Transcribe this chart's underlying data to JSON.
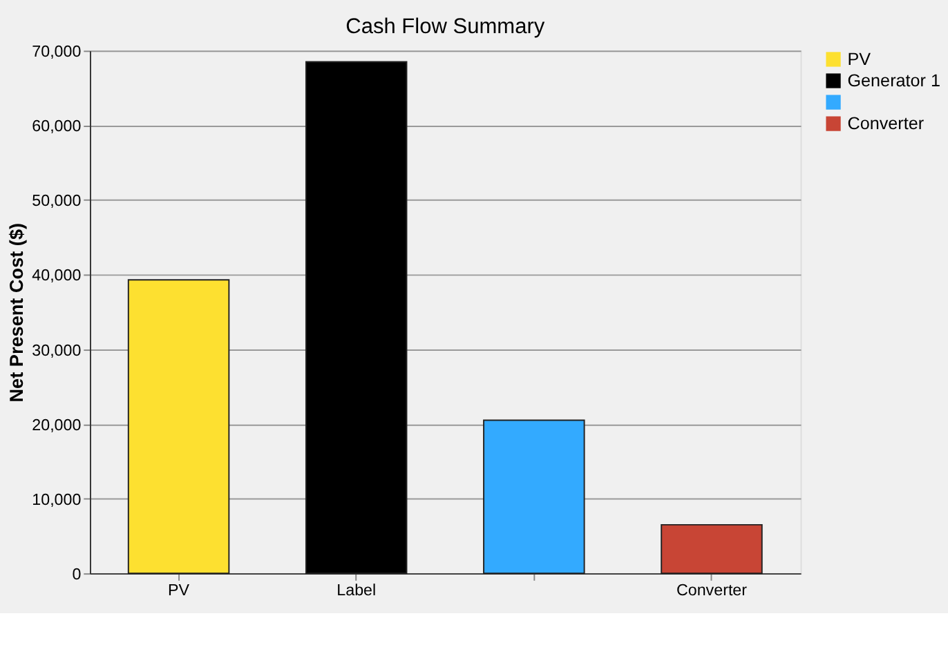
{
  "chart_data": {
    "type": "bar",
    "title": "Cash Flow Summary",
    "ylabel": "Net Present Cost ($)",
    "categories": [
      "PV",
      "Label",
      null,
      "Converter"
    ],
    "series": [
      {
        "name": "PV",
        "color": "#fde030",
        "values": [
          39300,
          null,
          null,
          null
        ]
      },
      {
        "name": "Generator 1",
        "color": "#000000",
        "values": [
          null,
          68500,
          null,
          null
        ]
      },
      {
        "color": "#33aaff",
        "values": [
          null,
          null,
          20500,
          null
        ]
      },
      {
        "name": "Converter",
        "color": "#c84535",
        "values": [
          null,
          null,
          null,
          6500
        ]
      }
    ],
    "ylim": [
      0,
      70000
    ],
    "yticks": [
      {
        "value": 0,
        "label": "0"
      },
      {
        "value": 10000,
        "label": "10,000"
      },
      {
        "value": 20000,
        "label": "20,000"
      },
      {
        "value": 30000,
        "label": "30,000"
      },
      {
        "value": 40000,
        "label": "40,000"
      },
      {
        "value": 50000,
        "label": "50,000"
      },
      {
        "value": 60000,
        "label": "60,000"
      },
      {
        "value": 70000,
        "label": "70,000"
      }
    ],
    "grid": "y",
    "legend": "top right"
  }
}
